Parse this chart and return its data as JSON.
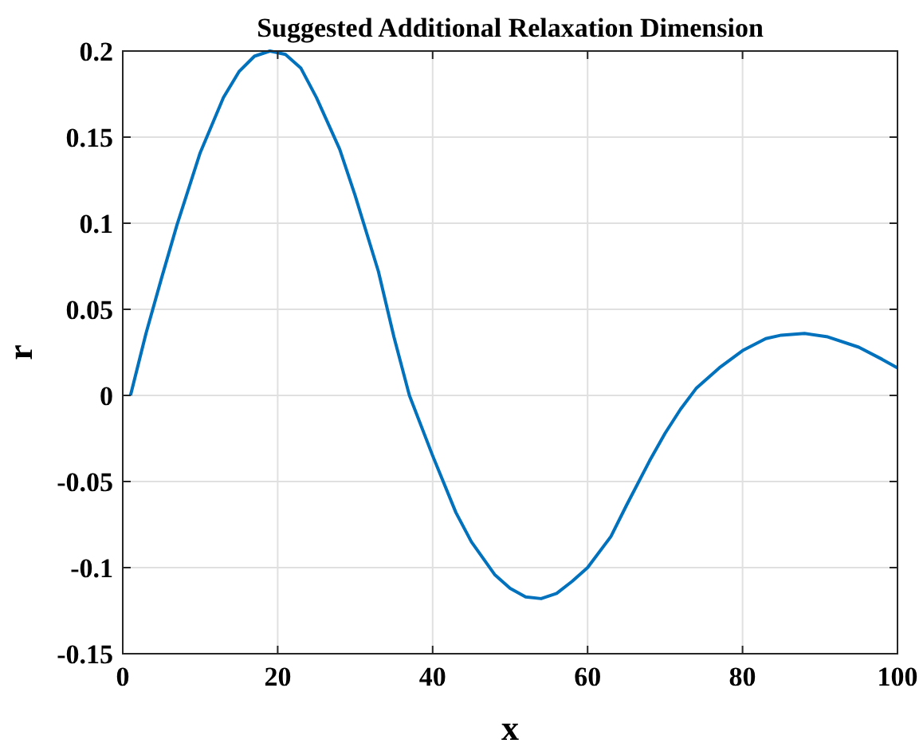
{
  "chart_data": {
    "type": "line",
    "title": "Suggested Additional Relaxation Dimension",
    "xlabel": "x",
    "ylabel": "r",
    "series": [
      {
        "color": "#0072bd",
        "x": [
          1,
          3,
          5,
          7,
          10,
          13,
          15,
          17,
          19,
          21,
          23,
          25,
          28,
          30,
          33,
          35,
          37,
          40,
          43,
          45,
          48,
          50,
          52,
          54,
          56,
          58,
          60,
          63,
          65,
          68,
          70,
          72,
          74,
          77,
          80,
          83,
          85,
          88,
          91,
          95,
          98,
          100
        ],
        "values": [
          0,
          0.036,
          0.068,
          0.099,
          0.141,
          0.173,
          0.188,
          0.197,
          0.2,
          0.198,
          0.19,
          0.173,
          0.143,
          0.116,
          0.072,
          0.034,
          0,
          -0.035,
          -0.068,
          -0.085,
          -0.104,
          -0.112,
          -0.117,
          -0.118,
          -0.115,
          -0.108,
          -0.1,
          -0.082,
          -0.064,
          -0.038,
          -0.022,
          -0.008,
          0.004,
          0.016,
          0.026,
          0.033,
          0.035,
          0.036,
          0.034,
          0.028,
          0.021,
          0.016
        ]
      }
    ],
    "xlim": [
      0,
      100
    ],
    "xticks": [
      0,
      20,
      40,
      60,
      80,
      100
    ],
    "ylim": [
      -0.15,
      0.2
    ],
    "yticks": [
      -0.15,
      -0.1,
      -0.05,
      0,
      0.05,
      0.1,
      0.15,
      0.2
    ],
    "grid": true,
    "line_style": "solid",
    "marker": "none"
  }
}
